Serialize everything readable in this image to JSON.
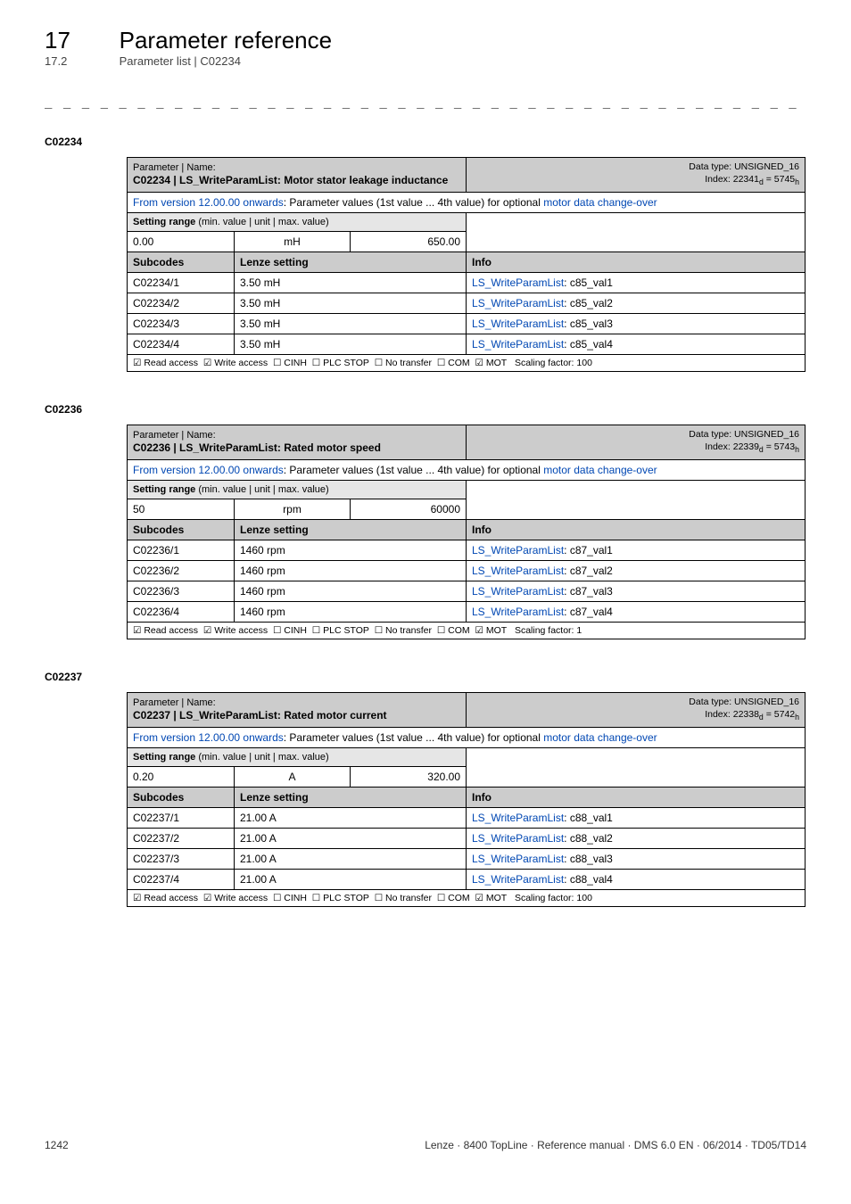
{
  "header": {
    "chapter_num": "17",
    "chapter_title": "Parameter reference",
    "sub_num": "17.2",
    "sub_title": "Parameter list | C02234"
  },
  "separator": "_ _ _ _ _ _ _ _ _ _ _ _ _ _ _ _ _ _ _ _ _ _ _ _ _ _ _ _ _ _ _ _ _ _ _ _ _ _ _ _ _ _ _ _ _ _ _ _ _ _ _ _ _ _ _ _ _ _ _ _ _ _ _ _",
  "tables": [
    {
      "section_code": "C02234",
      "title_prefix": "Parameter | Name:",
      "title": "C02234 | LS_WriteParamList: Motor stator leakage inductance",
      "datatype_line1": "Data type: UNSIGNED_16",
      "datatype_line2": "Index: 22341",
      "datatype_line2_sub": "d",
      "datatype_line2_eq": " = 5745",
      "datatype_line2_sub2": "h",
      "from_version": "From version 12.00.00 onwards",
      "from_version_rest": ": Parameter values (1st value ... 4th value) for optional ",
      "from_version_link": "motor data change-over",
      "setting_range_label": "Setting range ",
      "setting_range_detail": "(min. value | unit | max. value)",
      "range_min": "0.00",
      "range_unit": "mH",
      "range_max": "650.00",
      "subcodes_label": "Subcodes",
      "lenze_label": "Lenze setting",
      "info_label": "Info",
      "rows": [
        {
          "code": "C02234/1",
          "setting": "3.50 mH",
          "info_link": "LS_WriteParamList",
          "info_suffix": ": c85_val1"
        },
        {
          "code": "C02234/2",
          "setting": "3.50 mH",
          "info_link": "LS_WriteParamList",
          "info_suffix": ": c85_val2"
        },
        {
          "code": "C02234/3",
          "setting": "3.50 mH",
          "info_link": "LS_WriteParamList",
          "info_suffix": ": c85_val3"
        },
        {
          "code": "C02234/4",
          "setting": "3.50 mH",
          "info_link": "LS_WriteParamList",
          "info_suffix": ": c85_val4"
        }
      ],
      "footer": {
        "read": "☑ Read access",
        "write": "☑ Write access",
        "cinh": "☐ CINH",
        "plc": "☐ PLC STOP",
        "notransfer": "☐ No transfer",
        "com": "☐ COM",
        "mot": "☑ MOT",
        "scaling": "Scaling factor: 100"
      }
    },
    {
      "section_code": "C02236",
      "title_prefix": "Parameter | Name:",
      "title": "C02236 | LS_WriteParamList: Rated motor speed",
      "datatype_line1": "Data type: UNSIGNED_16",
      "datatype_line2": "Index: 22339",
      "datatype_line2_sub": "d",
      "datatype_line2_eq": " = 5743",
      "datatype_line2_sub2": "h",
      "from_version": "From version 12.00.00 onwards",
      "from_version_rest": ": Parameter values (1st value ... 4th value) for optional ",
      "from_version_link": "motor data change-over",
      "setting_range_label": "Setting range ",
      "setting_range_detail": "(min. value | unit | max. value)",
      "range_min": "50",
      "range_unit": "rpm",
      "range_max": "60000",
      "subcodes_label": "Subcodes",
      "lenze_label": "Lenze setting",
      "info_label": "Info",
      "rows": [
        {
          "code": "C02236/1",
          "setting": "1460 rpm",
          "info_link": "LS_WriteParamList",
          "info_suffix": ": c87_val1"
        },
        {
          "code": "C02236/2",
          "setting": "1460 rpm",
          "info_link": "LS_WriteParamList",
          "info_suffix": ": c87_val2"
        },
        {
          "code": "C02236/3",
          "setting": "1460 rpm",
          "info_link": "LS_WriteParamList",
          "info_suffix": ": c87_val3"
        },
        {
          "code": "C02236/4",
          "setting": "1460 rpm",
          "info_link": "LS_WriteParamList",
          "info_suffix": ": c87_val4"
        }
      ],
      "footer": {
        "read": "☑ Read access",
        "write": "☑ Write access",
        "cinh": "☐ CINH",
        "plc": "☐ PLC STOP",
        "notransfer": "☐ No transfer",
        "com": "☐ COM",
        "mot": "☑ MOT",
        "scaling": "Scaling factor: 1"
      }
    },
    {
      "section_code": "C02237",
      "title_prefix": "Parameter | Name:",
      "title": "C02237 | LS_WriteParamList: Rated motor current",
      "datatype_line1": "Data type: UNSIGNED_16",
      "datatype_line2": "Index: 22338",
      "datatype_line2_sub": "d",
      "datatype_line2_eq": " = 5742",
      "datatype_line2_sub2": "h",
      "from_version": "From version 12.00.00 onwards",
      "from_version_rest": ": Parameter values (1st value ... 4th value) for optional ",
      "from_version_link": "motor data change-over",
      "setting_range_label": "Setting range ",
      "setting_range_detail": "(min. value | unit | max. value)",
      "range_min": "0.20",
      "range_unit": "A",
      "range_max": "320.00",
      "subcodes_label": "Subcodes",
      "lenze_label": "Lenze setting",
      "info_label": "Info",
      "rows": [
        {
          "code": "C02237/1",
          "setting": "21.00 A",
          "info_link": "LS_WriteParamList",
          "info_suffix": ": c88_val1"
        },
        {
          "code": "C02237/2",
          "setting": "21.00 A",
          "info_link": "LS_WriteParamList",
          "info_suffix": ": c88_val2"
        },
        {
          "code": "C02237/3",
          "setting": "21.00 A",
          "info_link": "LS_WriteParamList",
          "info_suffix": ": c88_val3"
        },
        {
          "code": "C02237/4",
          "setting": "21.00 A",
          "info_link": "LS_WriteParamList",
          "info_suffix": ": c88_val4"
        }
      ],
      "footer": {
        "read": "☑ Read access",
        "write": "☑ Write access",
        "cinh": "☐ CINH",
        "plc": "☐ PLC STOP",
        "notransfer": "☐ No transfer",
        "com": "☐ COM",
        "mot": "☑ MOT",
        "scaling": "Scaling factor: 100"
      }
    }
  ],
  "footer": {
    "page": "1242",
    "doc": "Lenze · 8400 TopLine · Reference manual · DMS 6.0 EN · 06/2014 · TD05/TD14"
  }
}
